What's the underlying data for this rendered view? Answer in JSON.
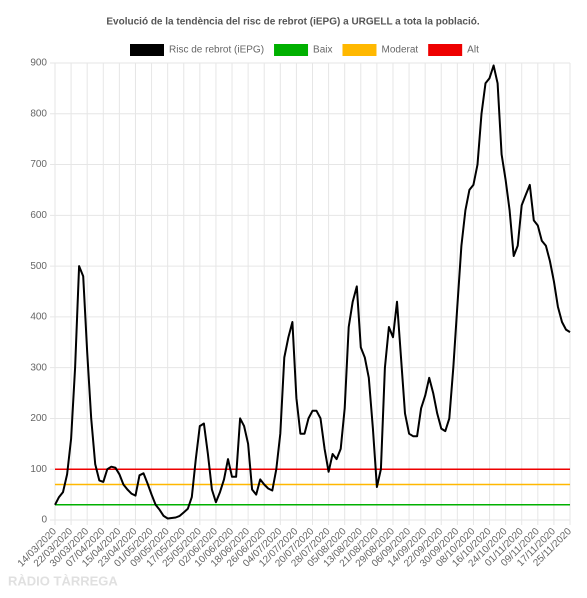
{
  "chart_data": {
    "type": "line",
    "title": "Evolució de la tendència del risc de rebrot (iEPG) a URGELL a tota la població.",
    "categories": [
      "14/03/2020",
      null,
      null,
      null,
      "22/03/2020",
      null,
      null,
      null,
      "30/03/2020",
      null,
      null,
      null,
      "07/04/2020",
      null,
      null,
      null,
      "15/04/2020",
      null,
      null,
      null,
      "23/04/2020",
      null,
      null,
      null,
      "01/05/2020",
      null,
      null,
      null,
      "09/05/2020",
      null,
      null,
      null,
      "17/05/2020",
      null,
      null,
      null,
      "25/05/2020",
      null,
      null,
      null,
      "02/06/2020",
      null,
      null,
      null,
      "10/06/2020",
      null,
      null,
      null,
      "18/06/2020",
      null,
      null,
      null,
      "26/06/2020",
      null,
      null,
      null,
      "04/07/2020",
      null,
      null,
      null,
      "12/07/2020",
      null,
      null,
      null,
      "20/07/2020",
      null,
      null,
      null,
      "28/07/2020",
      null,
      null,
      null,
      "05/08/2020",
      null,
      null,
      null,
      "13/08/2020",
      null,
      null,
      null,
      "21/08/2020",
      null,
      null,
      null,
      "29/08/2020",
      null,
      null,
      null,
      "06/09/2020",
      null,
      null,
      null,
      "14/09/2020",
      null,
      null,
      null,
      "22/09/2020",
      null,
      null,
      null,
      "30/09/2020",
      null,
      null,
      null,
      "08/10/2020",
      null,
      null,
      null,
      "16/10/2020",
      null,
      null,
      null,
      "24/10/2020",
      null,
      null,
      null,
      "01/11/2020",
      null,
      null,
      null,
      "09/11/2020",
      null,
      null,
      null,
      "17/11/2020",
      null,
      null,
      null,
      "25/11/2020"
    ],
    "series": [
      {
        "name": "Risc de rebrot (iEPG)",
        "color": "#000000",
        "values": [
          30,
          45,
          55,
          90,
          160,
          300,
          500,
          480,
          330,
          200,
          110,
          78,
          75,
          100,
          105,
          103,
          90,
          70,
          60,
          52,
          48,
          88,
          92,
          72,
          50,
          30,
          20,
          8,
          3,
          4,
          5,
          8,
          15,
          22,
          45,
          120,
          185,
          190,
          130,
          60,
          35,
          55,
          80,
          120,
          85,
          85,
          200,
          185,
          150,
          60,
          50,
          80,
          70,
          62,
          58,
          100,
          170,
          320,
          360,
          390,
          240,
          170,
          170,
          200,
          215,
          215,
          200,
          140,
          95,
          130,
          120,
          140,
          220,
          380,
          430,
          460,
          340,
          320,
          280,
          180,
          65,
          100,
          300,
          380,
          360,
          430,
          320,
          210,
          170,
          165,
          165,
          220,
          245,
          280,
          250,
          210,
          180,
          175,
          200,
          300,
          420,
          540,
          610,
          650,
          660,
          700,
          800,
          860,
          870,
          895,
          860,
          720,
          670,
          610,
          520,
          540,
          620,
          640,
          660,
          590,
          580,
          550,
          540,
          510,
          470,
          420,
          390,
          375,
          370
        ]
      }
    ],
    "reference_lines": [
      {
        "name": "Baix",
        "color": "#00b000",
        "value": 30
      },
      {
        "name": "Moderat",
        "color": "#ffb800",
        "value": 70
      },
      {
        "name": "Alt",
        "color": "#ee0000",
        "value": 100
      }
    ],
    "ylim": [
      0,
      900
    ],
    "yticks": [
      0,
      100,
      200,
      300,
      400,
      500,
      600,
      700,
      800,
      900
    ],
    "grid": true,
    "watermark": "RÀDIO TÀRREGA"
  }
}
